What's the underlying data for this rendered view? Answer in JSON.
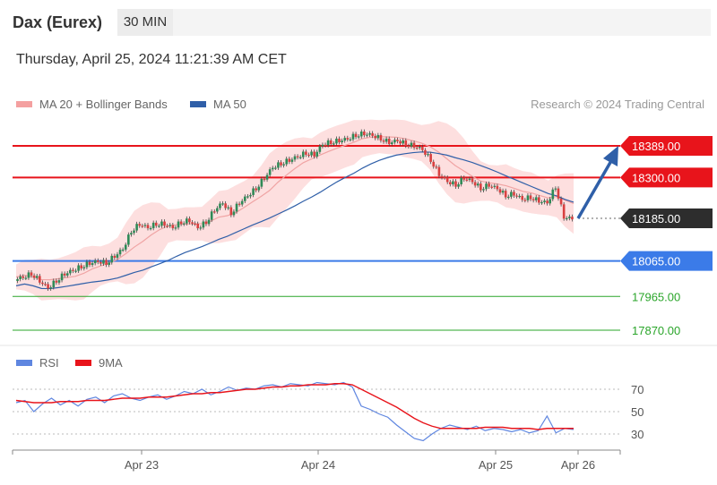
{
  "header": {
    "instrument": "Dax (Eurex)",
    "interval": "30 MIN",
    "datetime": "Thursday, April 25, 2024 11:21:39 AM CET"
  },
  "legend": {
    "ma20_label": "MA 20 + Bollinger Bands",
    "ma50_label": "MA 50",
    "credit": "Research © 2024 Trading Central",
    "rsi_label": "RSI",
    "rsi_ma_label": "9MA"
  },
  "colors": {
    "resistance": "#e8141b",
    "support": "#3b7be8",
    "target": "#2aa52a",
    "current": "#2d2d2d",
    "ma20": "#f0a4a4",
    "bollinger": "#fdd9d9",
    "ma50": "#2f5fa8",
    "rsi": "#5f86e0",
    "rsi_ma": "#e8141b",
    "candle_up": "#2e8b57",
    "candle_down": "#d94040",
    "arrow": "#2f5fa8"
  },
  "chart_data": {
    "type": "candlestick",
    "price_axis": {
      "min": 17820,
      "max": 18480
    },
    "x_axis_labels": [
      "Apr 23",
      "Apr 24",
      "Apr 25",
      "Apr 26"
    ],
    "levels": [
      {
        "value": 18389.0,
        "label": "18389.00",
        "kind": "resistance"
      },
      {
        "value": 18300.0,
        "label": "18300.00",
        "kind": "resistance"
      },
      {
        "value": 18185.0,
        "label": "18185.00",
        "kind": "current"
      },
      {
        "value": 18065.0,
        "label": "18065.00",
        "kind": "support"
      },
      {
        "value": 17965.0,
        "label": "17965.00",
        "kind": "target"
      },
      {
        "value": 17870.0,
        "label": "17870.00",
        "kind": "target"
      }
    ],
    "close_path": [
      18020,
      18030,
      18010,
      17990,
      18010,
      18030,
      18040,
      18050,
      18060,
      18065,
      18060,
      18080,
      18100,
      18150,
      18170,
      18160,
      18170,
      18170,
      18160,
      18175,
      18180,
      18160,
      18175,
      18210,
      18230,
      18200,
      18230,
      18250,
      18270,
      18300,
      18330,
      18340,
      18350,
      18360,
      18370,
      18365,
      18395,
      18400,
      18405,
      18410,
      18420,
      18425,
      18420,
      18410,
      18400,
      18405,
      18395,
      18390,
      18380,
      18350,
      18310,
      18290,
      18280,
      18300,
      18290,
      18270,
      18280,
      18270,
      18250,
      18255,
      18240,
      18245,
      18235,
      18230,
      18275,
      18190,
      18185
    ],
    "rsi": {
      "levels": [
        70,
        50,
        30
      ],
      "range": [
        15,
        85
      ],
      "values": [
        58,
        60,
        50,
        57,
        62,
        56,
        60,
        55,
        61,
        63,
        58,
        64,
        66,
        62,
        60,
        63,
        65,
        61,
        64,
        68,
        66,
        70,
        65,
        68,
        72,
        69,
        71,
        70,
        73,
        74,
        72,
        75,
        74,
        73,
        76,
        75,
        74,
        76,
        72,
        55,
        52,
        48,
        45,
        38,
        32,
        26,
        24,
        30,
        35,
        38,
        36,
        34,
        37,
        33,
        35,
        34,
        32,
        34,
        31,
        33,
        46,
        31,
        35,
        34
      ],
      "ma9": [
        60,
        59,
        58,
        58,
        58,
        59,
        59,
        59,
        60,
        60,
        60,
        61,
        62,
        62,
        62,
        63,
        63,
        63,
        64,
        65,
        66,
        66,
        67,
        67,
        68,
        69,
        70,
        70,
        71,
        72,
        72,
        73,
        73,
        74,
        74,
        74,
        75,
        75,
        74,
        70,
        66,
        62,
        58,
        54,
        49,
        44,
        40,
        37,
        35,
        35,
        35,
        35,
        35,
        36,
        36,
        36,
        35,
        35,
        35,
        34,
        35,
        35,
        35,
        35
      ]
    }
  }
}
